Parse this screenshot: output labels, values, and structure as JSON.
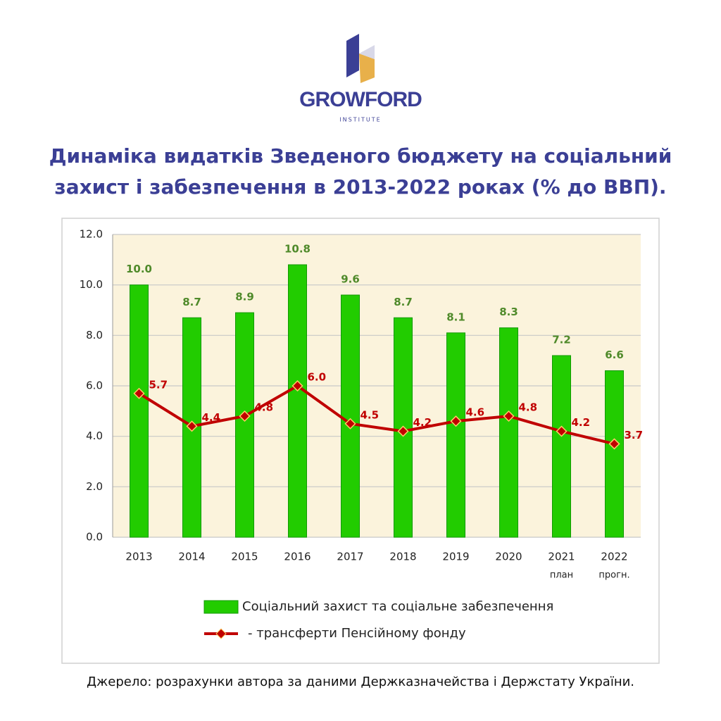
{
  "logo": {
    "name": "GROWFORD",
    "subtitle": "INSTITUTE"
  },
  "chart_data": {
    "type": "bar",
    "title": "Динаміка видатків Зведеного бюджету на соціальний захист і забезпечення в 2013-2022 роках (% до ВВП).",
    "categories": [
      "2013",
      "2014",
      "2015",
      "2016",
      "2017",
      "2018",
      "2019",
      "2020",
      "2021",
      "2022"
    ],
    "category_notes": [
      null,
      null,
      null,
      null,
      null,
      null,
      null,
      null,
      "план",
      "прогн."
    ],
    "series": [
      {
        "name": "Соціальний захист та соціальне забезпечення",
        "type": "bar",
        "color": "#22cc00",
        "values": [
          10.0,
          8.7,
          8.9,
          10.8,
          9.6,
          8.7,
          8.1,
          8.3,
          7.2,
          6.6
        ],
        "value_labels": [
          "10.0",
          "8.7",
          "8.9",
          "10.8",
          "9.6",
          "8.7",
          "8.1",
          "8.3",
          "7.2",
          "6.6"
        ],
        "label_color": "#4f8a2a"
      },
      {
        "name": "- трансферти Пенсійному фонду",
        "type": "line",
        "color": "#c00000",
        "values": [
          5.7,
          4.4,
          4.8,
          6.0,
          4.5,
          4.2,
          4.6,
          4.8,
          4.2,
          3.7
        ],
        "value_labels": [
          "5.7",
          "4.4",
          "4.8",
          "6.0",
          "4.5",
          "4.2",
          "4.6",
          "4.8",
          "4.2",
          "3.7"
        ],
        "label_color": "#c00000"
      }
    ],
    "ylim": [
      0,
      12
    ],
    "yticks": [
      {
        "value": 0,
        "label": "0.0"
      },
      {
        "value": 2,
        "label": "2.0"
      },
      {
        "value": 4,
        "label": "4.0"
      },
      {
        "value": 6,
        "label": "6.0"
      },
      {
        "value": 8,
        "label": "8.0"
      },
      {
        "value": 10,
        "label": "10.0"
      },
      {
        "value": 12,
        "label": "12.0"
      }
    ],
    "grid": true,
    "legend": "bottom",
    "source": "Джерело: розрахунки автора за даними Держказначейства і Держстату України."
  }
}
